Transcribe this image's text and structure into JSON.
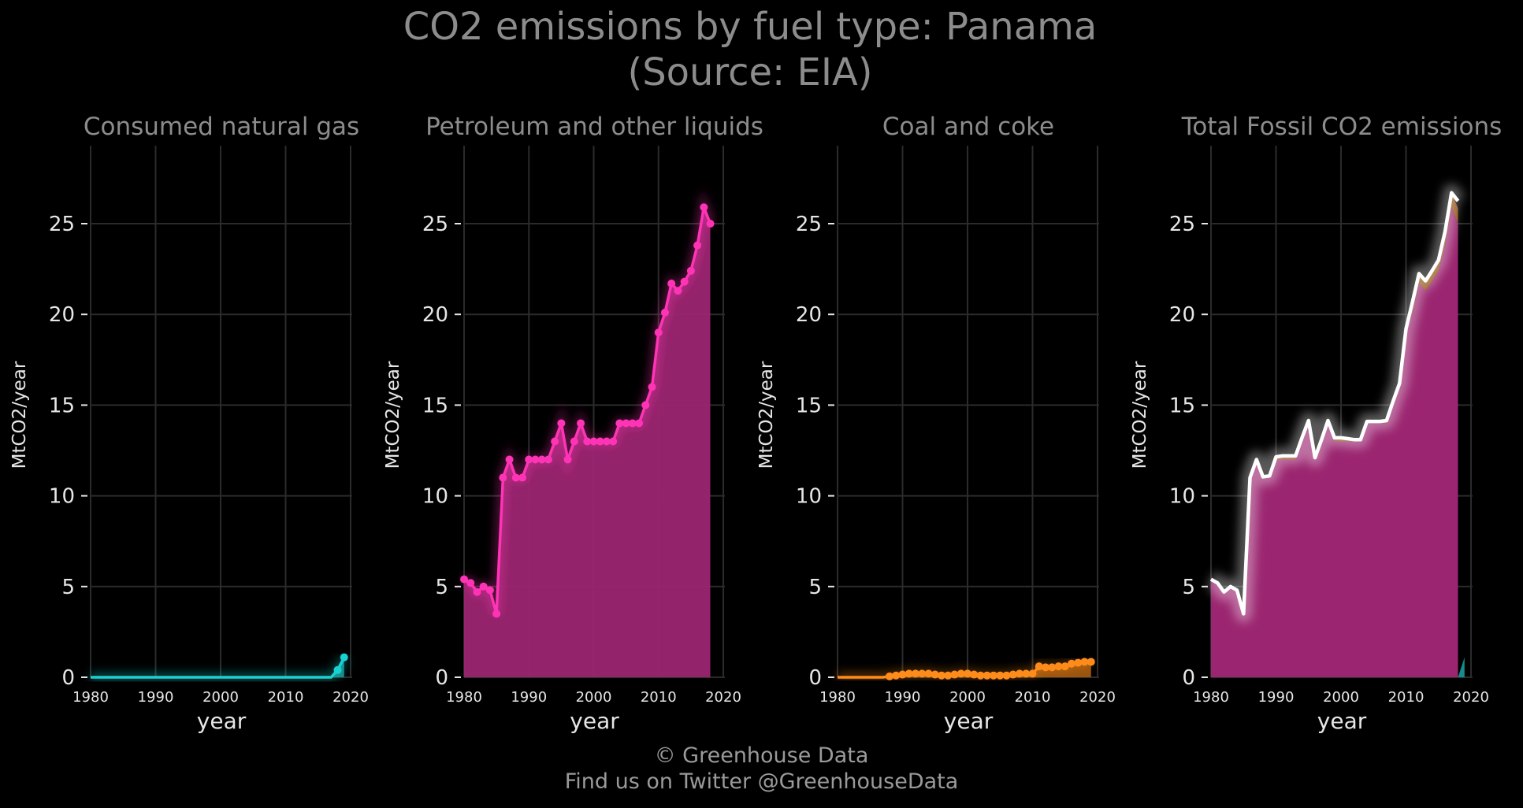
{
  "title_line1": "CO2 emissions by fuel type: Panama",
  "title_line2": "(Source: EIA)",
  "footer": {
    "copyright": "© Greenhouse Data",
    "twitter": "Find us on Twitter @GreenhouseData"
  },
  "colors": {
    "background": "#000000",
    "grid": "#2b2b2b",
    "text": "#e6e6e6",
    "title_text": "#8c8c8c",
    "gas": "#1ad1d1",
    "gas_fill": "#138c8c",
    "petroleum": "#ff33b5",
    "petroleum_fill": "#9b2570",
    "coal": "#ff8c1a",
    "coal_fill": "#a05710",
    "total": "#ffffff"
  },
  "chart_data": [
    {
      "type": "line",
      "title": "Consumed natural gas",
      "xlabel": "year",
      "ylabel": "MtCO2/year",
      "xlim": [
        1980,
        2020
      ],
      "ylim": [
        0,
        28
      ],
      "xticks": [
        1980,
        1990,
        2000,
        2010,
        2020
      ],
      "yticks": [
        0,
        5,
        10,
        15,
        20,
        25
      ],
      "grid": true,
      "series": [
        {
          "color_key": "gas",
          "x": [
            1980,
            1981,
            1982,
            1983,
            1984,
            1985,
            1986,
            1987,
            1988,
            1989,
            1990,
            1991,
            1992,
            1993,
            1994,
            1995,
            1996,
            1997,
            1998,
            1999,
            2000,
            2001,
            2002,
            2003,
            2004,
            2005,
            2006,
            2007,
            2008,
            2009,
            2010,
            2011,
            2012,
            2013,
            2014,
            2015,
            2016,
            2017,
            2018,
            2019
          ],
          "y": [
            0,
            0,
            0,
            0,
            0,
            0,
            0,
            0,
            0,
            0,
            0,
            0,
            0,
            0,
            0,
            0,
            0,
            0,
            0,
            0,
            0,
            0,
            0,
            0,
            0,
            0,
            0,
            0,
            0,
            0,
            0,
            0,
            0,
            0,
            0,
            0,
            0,
            0,
            0.4,
            1.1
          ],
          "markers_from": 2018
        }
      ]
    },
    {
      "type": "line",
      "title": "Petroleum and other liquids",
      "xlabel": "year",
      "ylabel": "MtCO2/year",
      "xlim": [
        1980,
        2020
      ],
      "ylim": [
        0,
        28
      ],
      "xticks": [
        1980,
        1990,
        2000,
        2010,
        2020
      ],
      "yticks": [
        0,
        5,
        10,
        15,
        20,
        25
      ],
      "grid": true,
      "series": [
        {
          "color_key": "petroleum",
          "x": [
            1980,
            1981,
            1982,
            1983,
            1984,
            1985,
            1986,
            1987,
            1988,
            1989,
            1990,
            1991,
            1992,
            1993,
            1994,
            1995,
            1996,
            1997,
            1998,
            1999,
            2000,
            2001,
            2002,
            2003,
            2004,
            2005,
            2006,
            2007,
            2008,
            2009,
            2010,
            2011,
            2012,
            2013,
            2014,
            2015,
            2016,
            2017,
            2018
          ],
          "y": [
            5.4,
            5.2,
            4.7,
            5.0,
            4.8,
            3.5,
            11.0,
            12.0,
            11.0,
            11.0,
            12.0,
            12.0,
            12.0,
            12.0,
            13.0,
            14.0,
            12.0,
            13.0,
            14.0,
            13.0,
            13.0,
            13.0,
            13.0,
            13.0,
            14.0,
            14.0,
            14.0,
            14.0,
            15.0,
            16.0,
            19.0,
            20.1,
            21.7,
            21.3,
            21.8,
            22.4,
            23.8,
            25.9,
            25.0
          ],
          "markers_from": 1980
        }
      ]
    },
    {
      "type": "line",
      "title": "Coal and coke",
      "xlabel": "year",
      "ylabel": "MtCO2/year",
      "xlim": [
        1980,
        2020
      ],
      "ylim": [
        0,
        28
      ],
      "xticks": [
        1980,
        1990,
        2000,
        2010,
        2020
      ],
      "yticks": [
        0,
        5,
        10,
        15,
        20,
        25
      ],
      "grid": true,
      "series": [
        {
          "color_key": "coal",
          "x": [
            1980,
            1981,
            1982,
            1983,
            1984,
            1985,
            1986,
            1987,
            1988,
            1989,
            1990,
            1991,
            1992,
            1993,
            1994,
            1995,
            1996,
            1997,
            1998,
            1999,
            2000,
            2001,
            2002,
            2003,
            2004,
            2005,
            2006,
            2007,
            2008,
            2009,
            2010,
            2011,
            2012,
            2013,
            2014,
            2015,
            2016,
            2017,
            2018,
            2019
          ],
          "y": [
            0,
            0,
            0,
            0,
            0,
            0,
            0,
            0,
            0.05,
            0.1,
            0.15,
            0.2,
            0.2,
            0.2,
            0.2,
            0.15,
            0.1,
            0.1,
            0.15,
            0.2,
            0.2,
            0.15,
            0.1,
            0.1,
            0.1,
            0.1,
            0.1,
            0.15,
            0.2,
            0.2,
            0.2,
            0.6,
            0.55,
            0.55,
            0.6,
            0.6,
            0.75,
            0.8,
            0.85,
            0.85
          ],
          "markers_from": 1988
        }
      ]
    },
    {
      "type": "area",
      "title": "Total Fossil CO2 emissions",
      "xlabel": "year",
      "ylabel": "MtCO2/year",
      "xlim": [
        1980,
        2020
      ],
      "ylim": [
        0,
        28
      ],
      "xticks": [
        1980,
        1990,
        2000,
        2010,
        2020
      ],
      "yticks": [
        0,
        5,
        10,
        15,
        20,
        25
      ],
      "grid": true,
      "series": [
        {
          "color_key": "total",
          "x": [
            1980,
            1981,
            1982,
            1983,
            1984,
            1985,
            1986,
            1987,
            1988,
            1989,
            1990,
            1991,
            1992,
            1993,
            1994,
            1995,
            1996,
            1997,
            1998,
            1999,
            2000,
            2001,
            2002,
            2003,
            2004,
            2005,
            2006,
            2007,
            2008,
            2009,
            2010,
            2011,
            2012,
            2013,
            2014,
            2015,
            2016,
            2017,
            2018
          ],
          "y": [
            5.4,
            5.2,
            4.7,
            5.0,
            4.8,
            3.5,
            11.0,
            12.0,
            11.05,
            11.1,
            12.15,
            12.2,
            12.2,
            12.2,
            13.2,
            14.15,
            12.1,
            13.1,
            14.15,
            13.2,
            13.2,
            13.15,
            13.1,
            13.1,
            14.1,
            14.1,
            14.1,
            14.15,
            15.2,
            16.2,
            19.2,
            20.7,
            22.25,
            21.85,
            22.4,
            23.0,
            24.55,
            26.7,
            26.25
          ]
        }
      ]
    }
  ]
}
